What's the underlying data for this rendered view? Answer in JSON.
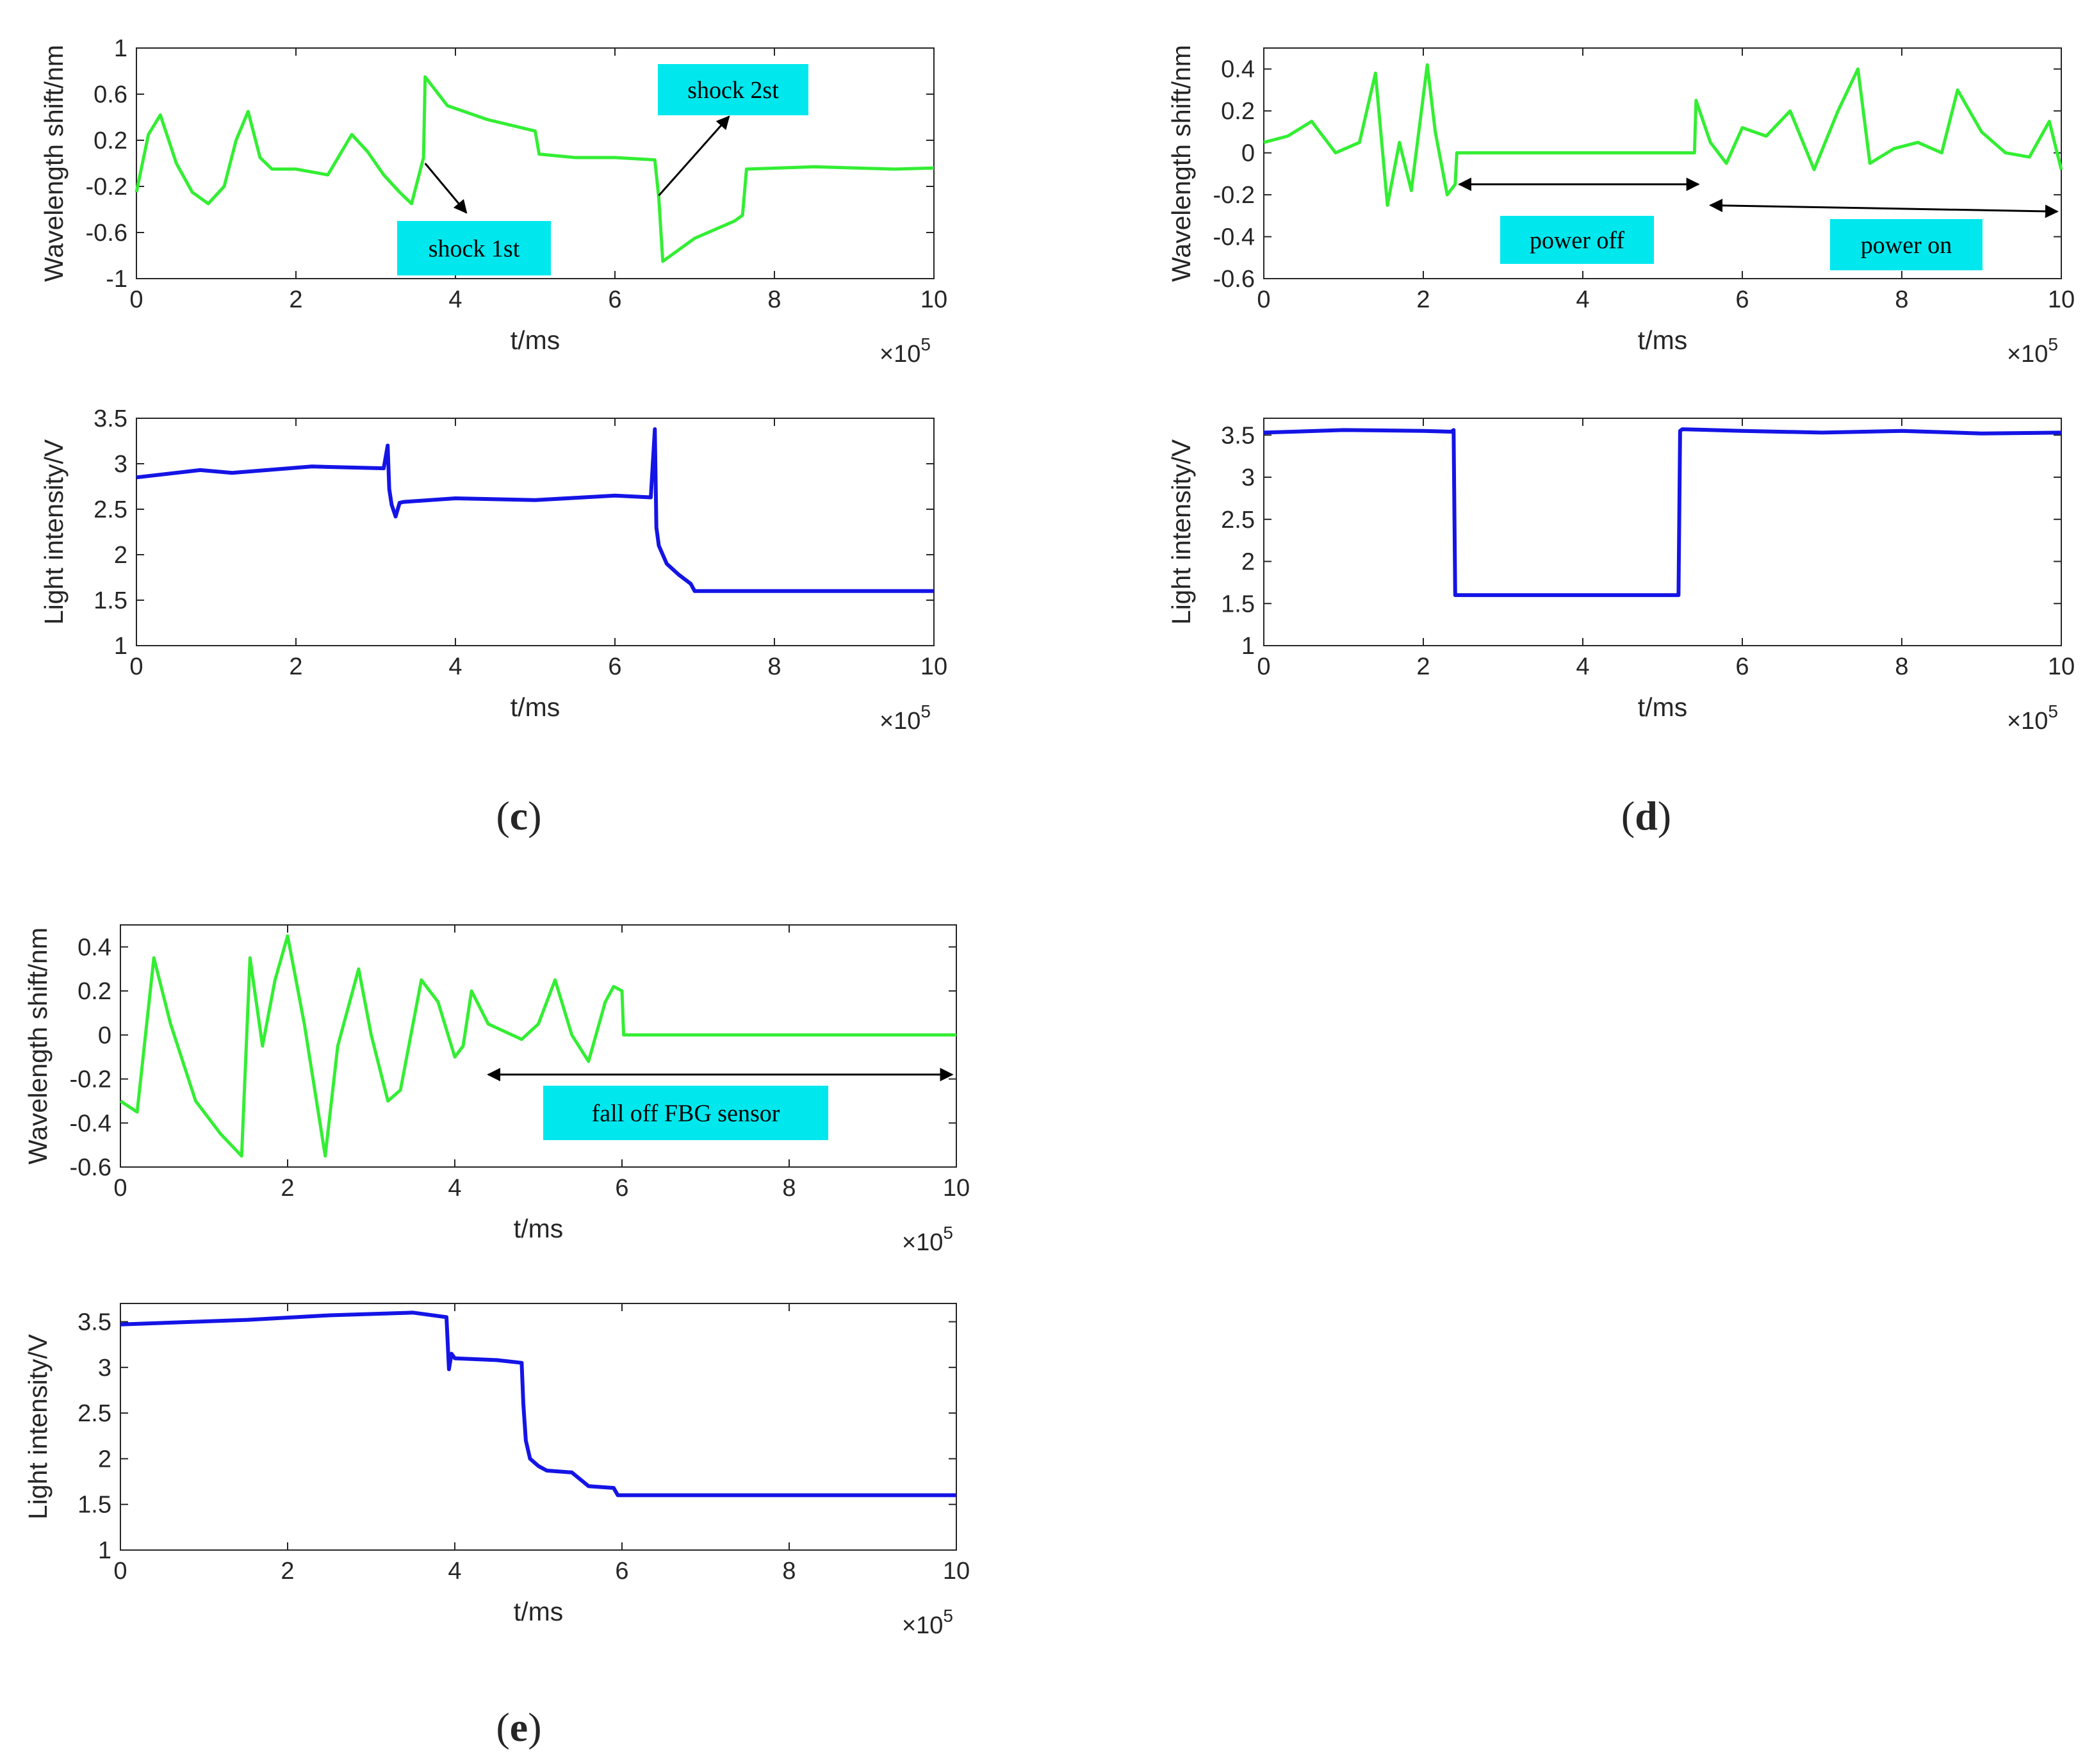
{
  "chart_data": [
    {
      "type": "line",
      "panel": "c",
      "subplot": "top",
      "title": "",
      "xlabel": "t/ms",
      "ylabel": "Wavelength shift/nm",
      "xlim": [
        0,
        10
      ],
      "ylim": [
        -1,
        1
      ],
      "xticks": [
        "0",
        "2",
        "4",
        "6",
        "8",
        "10"
      ],
      "yticks": [
        "-1",
        "-0.6",
        "-0.2",
        "0.2",
        "0.6",
        "1"
      ],
      "x_multiplier": {
        "base": "×10",
        "exp": "5"
      },
      "series": [
        {
          "name": "wavelength shift",
          "color": "#33ee33",
          "x": [
            0,
            0.15,
            0.3,
            0.5,
            0.7,
            0.9,
            1.1,
            1.25,
            1.4,
            1.55,
            1.7,
            2.0,
            2.4,
            2.7,
            2.9,
            3.1,
            3.3,
            3.45,
            3.6,
            3.62,
            3.9,
            4.4,
            5.0,
            5.05,
            5.5,
            6.0,
            6.5,
            6.55,
            6.6,
            7.0,
            7.5,
            7.6,
            7.65,
            8.5,
            9.5,
            10.0
          ],
          "y": [
            -0.25,
            0.25,
            0.42,
            0.0,
            -0.25,
            -0.35,
            -0.2,
            0.2,
            0.45,
            0.05,
            -0.05,
            -0.05,
            -0.1,
            0.25,
            0.1,
            -0.1,
            -0.25,
            -0.35,
            0.05,
            0.75,
            0.5,
            0.38,
            0.28,
            0.08,
            0.05,
            0.05,
            0.03,
            -0.3,
            -0.85,
            -0.65,
            -0.5,
            -0.45,
            -0.05,
            -0.03,
            -0.05,
            -0.04
          ]
        }
      ],
      "annotations": [
        "shock 1st",
        "shock 2st"
      ]
    },
    {
      "type": "line",
      "panel": "c",
      "subplot": "bottom",
      "title": "",
      "xlabel": "t/ms",
      "ylabel": "Light intensity/V",
      "xlim": [
        0,
        10
      ],
      "ylim": [
        1,
        3.5
      ],
      "xticks": [
        "0",
        "2",
        "4",
        "6",
        "8",
        "10"
      ],
      "yticks": [
        "1",
        "1.5",
        "2",
        "2.5",
        "3",
        "3.5"
      ],
      "x_multiplier": {
        "base": "×10",
        "exp": "5"
      },
      "series": [
        {
          "name": "light intensity",
          "color": "#1414e6",
          "x": [
            0,
            0.8,
            1.2,
            2.2,
            3.1,
            3.15,
            3.17,
            3.2,
            3.25,
            3.3,
            3.35,
            4.0,
            5.0,
            6.0,
            6.45,
            6.5,
            6.52,
            6.55,
            6.65,
            6.8,
            6.95,
            7.0,
            10.0
          ],
          "y": [
            2.85,
            2.93,
            2.9,
            2.97,
            2.95,
            3.2,
            2.72,
            2.55,
            2.42,
            2.57,
            2.58,
            2.62,
            2.6,
            2.65,
            2.63,
            3.38,
            2.3,
            2.1,
            1.9,
            1.78,
            1.68,
            1.6,
            1.6
          ]
        }
      ]
    },
    {
      "type": "line",
      "panel": "d",
      "subplot": "top",
      "title": "",
      "xlabel": "t/ms",
      "ylabel": "Wavelength shift/nm",
      "xlim": [
        0,
        10
      ],
      "ylim": [
        -0.6,
        0.5
      ],
      "xticks": [
        "0",
        "2",
        "4",
        "6",
        "8",
        "10"
      ],
      "yticks": [
        "-0.6",
        "-0.4",
        "-0.2",
        "0",
        "0.2",
        "0.4"
      ],
      "x_multiplier": {
        "base": "×10",
        "exp": "5"
      },
      "series": [
        {
          "name": "wavelength shift",
          "color": "#33ee33",
          "x": [
            0,
            0.3,
            0.6,
            0.9,
            1.2,
            1.4,
            1.55,
            1.7,
            1.85,
            2.05,
            2.15,
            2.3,
            2.4,
            2.42,
            5.4,
            5.42,
            5.6,
            5.8,
            6.0,
            6.3,
            6.6,
            6.9,
            7.2,
            7.45,
            7.6,
            7.9,
            8.2,
            8.5,
            8.7,
            9.0,
            9.3,
            9.6,
            9.85,
            10.0
          ],
          "y": [
            0.05,
            0.08,
            0.15,
            0.0,
            0.05,
            0.38,
            -0.25,
            0.05,
            -0.18,
            0.42,
            0.1,
            -0.2,
            -0.15,
            0.0,
            0.0,
            0.25,
            0.05,
            -0.05,
            0.12,
            0.08,
            0.2,
            -0.08,
            0.2,
            0.4,
            -0.05,
            0.02,
            0.05,
            0.0,
            0.3,
            0.1,
            0.0,
            -0.02,
            0.15,
            -0.08
          ]
        }
      ],
      "annotations": [
        "power off",
        "power on"
      ]
    },
    {
      "type": "line",
      "panel": "d",
      "subplot": "bottom",
      "title": "",
      "xlabel": "t/ms",
      "ylabel": "Light intensity/V",
      "xlim": [
        0,
        10
      ],
      "ylim": [
        1,
        3.7
      ],
      "xticks": [
        "0",
        "2",
        "4",
        "6",
        "8",
        "10"
      ],
      "yticks": [
        "1",
        "1.5",
        "2",
        "2.5",
        "3",
        "3.5"
      ],
      "x_multiplier": {
        "base": "×10",
        "exp": "5"
      },
      "series": [
        {
          "name": "light intensity",
          "color": "#1414e6",
          "x": [
            0,
            1.0,
            2.0,
            2.35,
            2.38,
            2.4,
            5.2,
            5.22,
            5.25,
            6.0,
            7.0,
            8.0,
            9.0,
            10.0
          ],
          "y": [
            3.53,
            3.56,
            3.55,
            3.54,
            3.56,
            1.6,
            1.6,
            3.55,
            3.57,
            3.55,
            3.53,
            3.55,
            3.52,
            3.53
          ]
        }
      ]
    },
    {
      "type": "line",
      "panel": "e",
      "subplot": "top",
      "title": "",
      "xlabel": "t/ms",
      "ylabel": "Wavelength shift/nm",
      "xlim": [
        0,
        10
      ],
      "ylim": [
        -0.6,
        0.5
      ],
      "xticks": [
        "0",
        "2",
        "4",
        "6",
        "8",
        "10"
      ],
      "yticks": [
        "-0.6",
        "-0.4",
        "-0.2",
        "0",
        "0.2",
        "0.4"
      ],
      "x_multiplier": {
        "base": "×10",
        "exp": "5"
      },
      "series": [
        {
          "name": "wavelength shift",
          "color": "#33ee33",
          "x": [
            0,
            0.2,
            0.4,
            0.6,
            0.9,
            1.2,
            1.45,
            1.55,
            1.7,
            1.85,
            2.0,
            2.2,
            2.45,
            2.6,
            2.85,
            3.0,
            3.2,
            3.35,
            3.6,
            3.8,
            4.0,
            4.1,
            4.2,
            4.4,
            4.8,
            5.0,
            5.2,
            5.4,
            5.6,
            5.8,
            5.9,
            6.0,
            6.02,
            10.0
          ],
          "y": [
            -0.3,
            -0.35,
            0.35,
            0.05,
            -0.3,
            -0.45,
            -0.55,
            0.35,
            -0.05,
            0.25,
            0.45,
            0.05,
            -0.55,
            -0.05,
            0.3,
            0.0,
            -0.3,
            -0.25,
            0.25,
            0.15,
            -0.1,
            -0.05,
            0.2,
            0.05,
            -0.02,
            0.05,
            0.25,
            0.0,
            -0.12,
            0.15,
            0.22,
            0.2,
            0.0,
            0.0
          ]
        }
      ],
      "annotations": [
        "fall off  FBG sensor"
      ]
    },
    {
      "type": "line",
      "panel": "e",
      "subplot": "bottom",
      "title": "",
      "xlabel": "t/ms",
      "ylabel": "Light intensity/V",
      "xlim": [
        0,
        10
      ],
      "ylim": [
        1,
        3.7
      ],
      "xticks": [
        "0",
        "2",
        "4",
        "6",
        "8",
        "10"
      ],
      "yticks": [
        "1",
        "1.5",
        "2",
        "2.5",
        "3",
        "3.5"
      ],
      "x_multiplier": {
        "base": "×10",
        "exp": "5"
      },
      "series": [
        {
          "name": "light intensity",
          "color": "#1414e6",
          "x": [
            0,
            1.5,
            2.5,
            3.5,
            3.9,
            3.93,
            3.96,
            4.0,
            4.5,
            4.8,
            4.82,
            4.85,
            4.9,
            5.0,
            5.1,
            5.4,
            5.6,
            5.9,
            5.95,
            10.0
          ],
          "y": [
            3.47,
            3.52,
            3.57,
            3.6,
            3.55,
            2.98,
            3.15,
            3.1,
            3.08,
            3.05,
            2.6,
            2.2,
            2.0,
            1.92,
            1.87,
            1.85,
            1.7,
            1.68,
            1.6,
            1.6
          ]
        }
      ]
    }
  ],
  "panel_labels": {
    "c": {
      "open": "(",
      "letter": "c",
      "close": ")"
    },
    "d": {
      "open": "(",
      "letter": "d",
      "close": ")"
    },
    "e": {
      "open": "(",
      "letter": "e",
      "close": ")"
    }
  }
}
